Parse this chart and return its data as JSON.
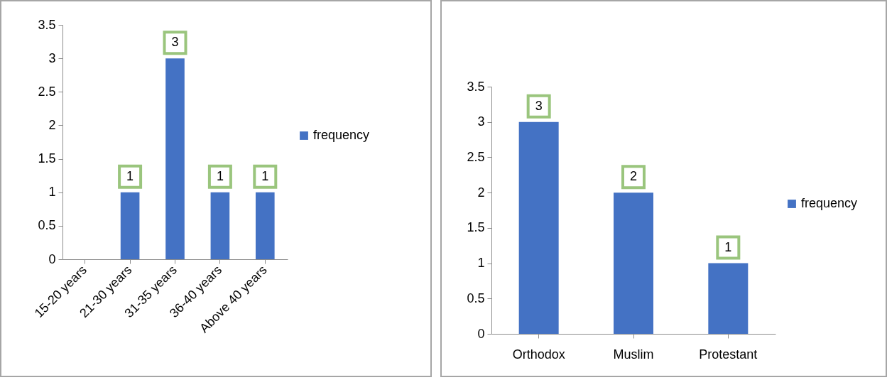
{
  "chart_data": [
    {
      "type": "bar",
      "categories": [
        "15-20 years",
        "21-30 years",
        "31-35 years",
        "36-40 years",
        "Above 40 years"
      ],
      "series": [
        {
          "name": "frequency",
          "color": "#4472c4",
          "values": [
            0,
            1,
            3,
            1,
            1
          ]
        }
      ],
      "value_labels": [
        null,
        "1",
        "3",
        "1",
        "1"
      ],
      "ylim": [
        0,
        3.5
      ],
      "yticks": [
        0,
        0.5,
        1,
        1.5,
        2,
        2.5,
        3,
        3.5
      ],
      "legend": "right"
    },
    {
      "type": "bar",
      "categories": [
        "Orthodox",
        "Muslim",
        "Protestant"
      ],
      "series": [
        {
          "name": "frequency",
          "color": "#4472c4",
          "values": [
            3,
            2,
            1
          ]
        }
      ],
      "data_labels": true,
      "ylim": [
        0,
        3.5
      ],
      "yticks": [
        0,
        0.5,
        1,
        1.5,
        2,
        2.5,
        3,
        3.5
      ],
      "legend": "right"
    }
  ]
}
